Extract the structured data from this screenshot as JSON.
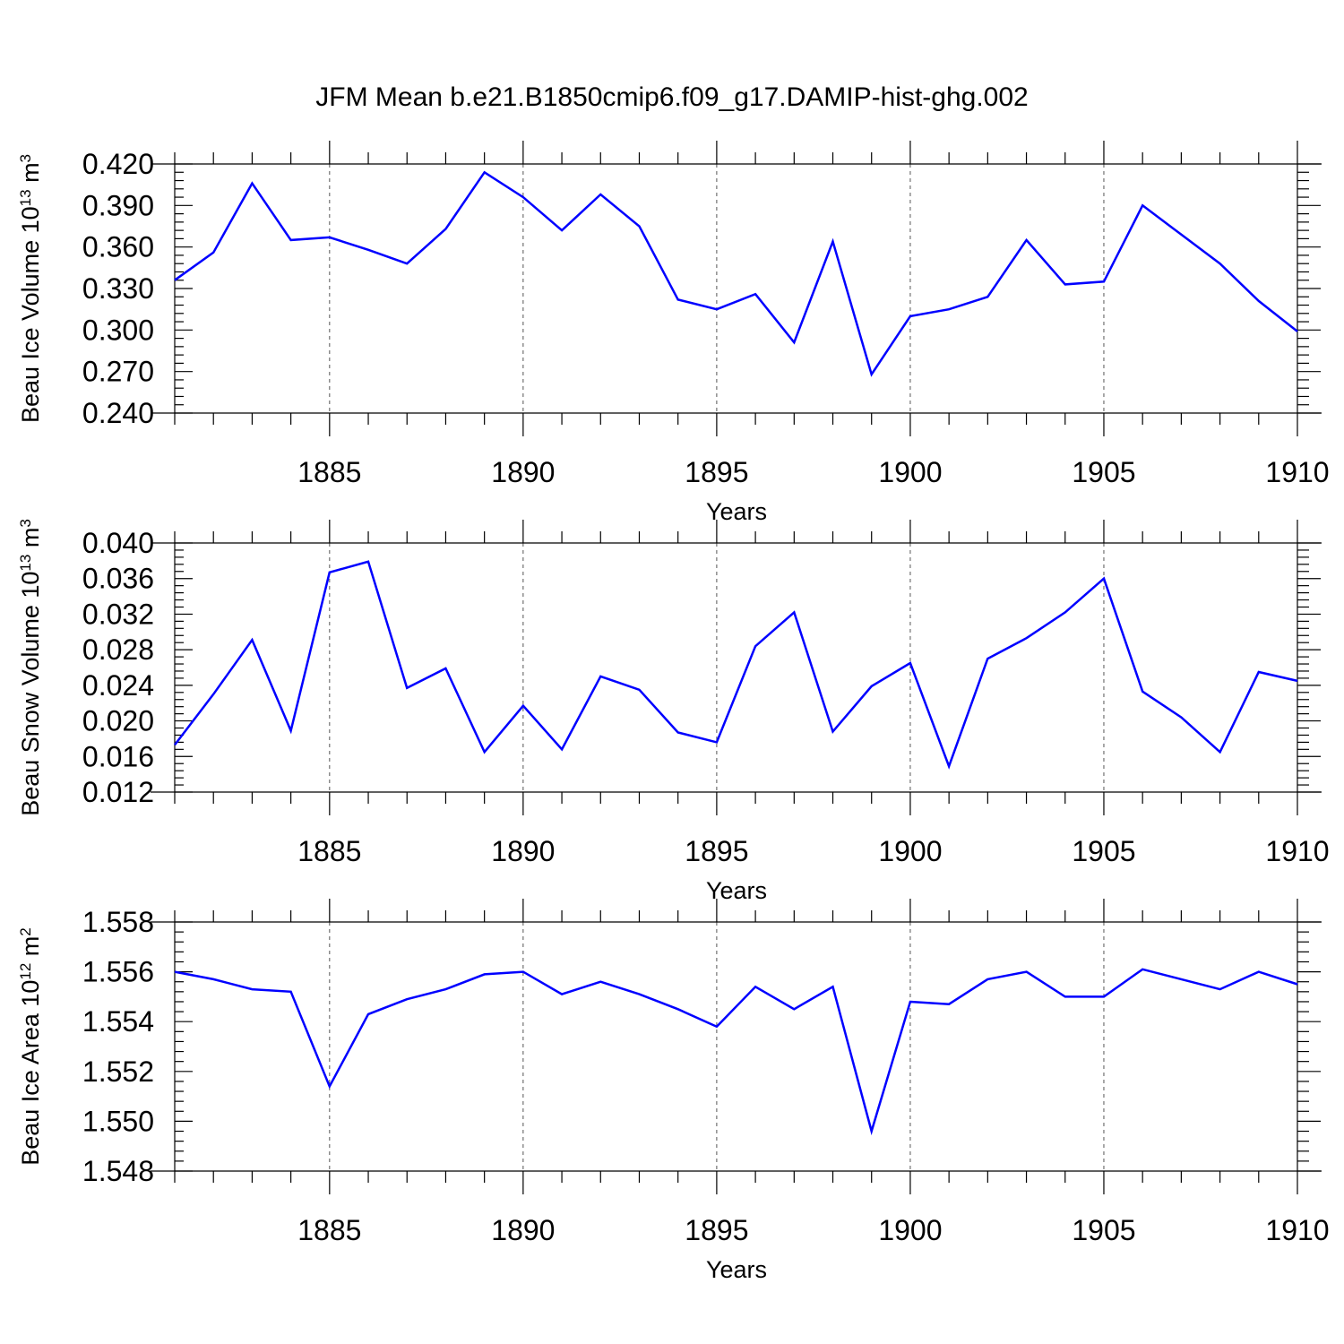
{
  "title": "JFM Mean b.e21.B1850cmip6.f09_g17.DAMIP-hist-ghg.002",
  "colors": {
    "line": "#0000ff",
    "axis": "#000000",
    "grid": "#555555"
  },
  "chart_data": [
    {
      "type": "line",
      "xlabel": "Years",
      "ylabel": {
        "text": "Beau Ice Volume 10",
        "exp": "13",
        "unit": " m",
        "unit_exp": "3"
      },
      "xlim": [
        1881,
        1910
      ],
      "xticks": [
        1885,
        1890,
        1895,
        1900,
        1905,
        1910
      ],
      "xtick_labels": [
        "1885",
        "1890",
        "1895",
        "1900",
        "1905",
        "1910"
      ],
      "ylim": [
        0.24,
        0.42
      ],
      "yticks": [
        0.24,
        0.27,
        0.3,
        0.33,
        0.36,
        0.39,
        0.42
      ],
      "ytick_labels": [
        "0.240",
        "0.270",
        "0.300",
        "0.330",
        "0.360",
        "0.390",
        "0.420"
      ],
      "grid": "vertical dashed at major x ticks",
      "x": [
        1881,
        1882,
        1883,
        1884,
        1885,
        1886,
        1887,
        1888,
        1889,
        1890,
        1891,
        1892,
        1893,
        1894,
        1895,
        1896,
        1897,
        1898,
        1899,
        1900,
        1901,
        1902,
        1903,
        1904,
        1905,
        1906,
        1907,
        1908,
        1909,
        1910
      ],
      "values": [
        0.336,
        0.356,
        0.406,
        0.365,
        0.367,
        0.358,
        0.348,
        0.373,
        0.414,
        0.396,
        0.372,
        0.398,
        0.375,
        0.322,
        0.315,
        0.326,
        0.291,
        0.364,
        0.268,
        0.31,
        0.315,
        0.324,
        0.365,
        0.333,
        0.335,
        0.39,
        0.369,
        0.348,
        0.321,
        0.299
      ]
    },
    {
      "type": "line",
      "xlabel": "Years",
      "ylabel": {
        "text": "Beau Snow Volume 10",
        "exp": "13",
        "unit": " m",
        "unit_exp": "3"
      },
      "xlim": [
        1881,
        1910
      ],
      "xticks": [
        1885,
        1890,
        1895,
        1900,
        1905,
        1910
      ],
      "xtick_labels": [
        "1885",
        "1890",
        "1895",
        "1900",
        "1905",
        "1910"
      ],
      "ylim": [
        0.012,
        0.04
      ],
      "yticks": [
        0.012,
        0.016,
        0.02,
        0.024,
        0.028,
        0.032,
        0.036,
        0.04
      ],
      "ytick_labels": [
        "0.012",
        "0.016",
        "0.020",
        "0.024",
        "0.028",
        "0.032",
        "0.036",
        "0.040"
      ],
      "grid": "vertical dashed at major x ticks",
      "x": [
        1881,
        1882,
        1883,
        1884,
        1885,
        1886,
        1887,
        1888,
        1889,
        1890,
        1891,
        1892,
        1893,
        1894,
        1895,
        1896,
        1897,
        1898,
        1899,
        1900,
        1901,
        1902,
        1903,
        1904,
        1905,
        1906,
        1907,
        1908,
        1909,
        1910
      ],
      "values": [
        0.0173,
        0.023,
        0.0291,
        0.0189,
        0.0367,
        0.0379,
        0.0237,
        0.0259,
        0.0165,
        0.0217,
        0.0168,
        0.025,
        0.0235,
        0.0187,
        0.0176,
        0.0284,
        0.0322,
        0.0188,
        0.0239,
        0.0265,
        0.0149,
        0.027,
        0.0293,
        0.0322,
        0.036,
        0.0233,
        0.0204,
        0.0165,
        0.0255,
        0.0245
      ]
    },
    {
      "type": "line",
      "xlabel": "Years",
      "ylabel": {
        "text": "Beau Ice Area 10",
        "exp": "12",
        "unit": " m",
        "unit_exp": "2"
      },
      "xlim": [
        1881,
        1910
      ],
      "xticks": [
        1885,
        1890,
        1895,
        1900,
        1905,
        1910
      ],
      "xtick_labels": [
        "1885",
        "1890",
        "1895",
        "1900",
        "1905",
        "1910"
      ],
      "ylim": [
        1.548,
        1.558
      ],
      "yticks": [
        1.548,
        1.55,
        1.552,
        1.554,
        1.556,
        1.558
      ],
      "ytick_labels": [
        "1.548",
        "1.550",
        "1.552",
        "1.554",
        "1.556",
        "1.558"
      ],
      "grid": "vertical dashed at major x ticks",
      "x": [
        1881,
        1882,
        1883,
        1884,
        1885,
        1886,
        1887,
        1888,
        1889,
        1890,
        1891,
        1892,
        1893,
        1894,
        1895,
        1896,
        1897,
        1898,
        1899,
        1900,
        1901,
        1902,
        1903,
        1904,
        1905,
        1906,
        1907,
        1908,
        1909,
        1910
      ],
      "values": [
        1.556,
        1.5557,
        1.5553,
        1.5552,
        1.5514,
        1.5543,
        1.5549,
        1.5553,
        1.5559,
        1.556,
        1.5551,
        1.5556,
        1.5551,
        1.5545,
        1.5538,
        1.5554,
        1.5545,
        1.5554,
        1.5496,
        1.5548,
        1.5547,
        1.5557,
        1.556,
        1.555,
        1.555,
        1.5561,
        1.5557,
        1.5553,
        1.556,
        1.5555
      ]
    }
  ]
}
